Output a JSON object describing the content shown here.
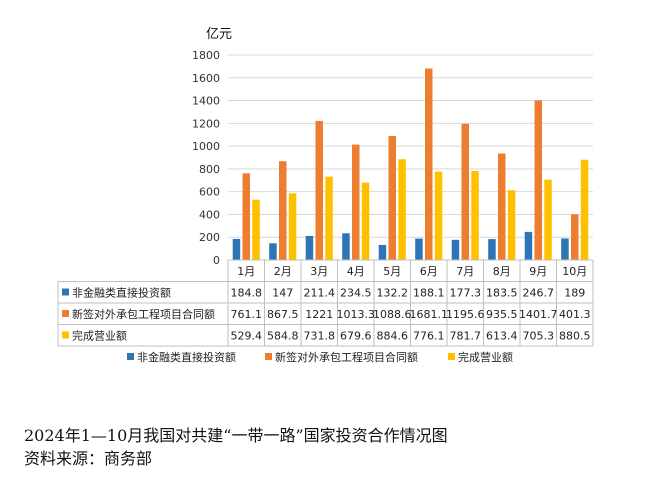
{
  "chart_data": {
    "type": "bar",
    "unit_label": "亿元",
    "ylim": [
      0,
      1800
    ],
    "y_ticks": [
      0,
      200,
      400,
      600,
      800,
      1000,
      1200,
      1400,
      1600,
      1800
    ],
    "categories": [
      "1月",
      "2月",
      "3月",
      "4月",
      "5月",
      "6月",
      "7月",
      "8月",
      "9月",
      "10月"
    ],
    "series": [
      {
        "name": "非金融类直接投资额",
        "color": "#2E75B6",
        "values": [
          184.8,
          147,
          211.4,
          234.5,
          132.2,
          188.1,
          177.3,
          183.5,
          246.7,
          189
        ]
      },
      {
        "name": "新签对外承包工程项目合同额",
        "color": "#ED7D31",
        "values": [
          761.1,
          867.5,
          1221,
          1013.3,
          1088.6,
          1681.1,
          1195.6,
          935.5,
          1401.7,
          401.3
        ]
      },
      {
        "name": "完成营业额",
        "color": "#FFC000",
        "values": [
          529.4,
          584.8,
          731.8,
          679.6,
          884.6,
          776.1,
          781.7,
          613.4,
          705.3,
          880.5
        ]
      }
    ],
    "legend_position": "bottom",
    "grid": true
  },
  "caption": {
    "title": "2024年1—10月我国对共建“一带一路”国家投资合作情况图",
    "source": "资料来源：商务部"
  }
}
